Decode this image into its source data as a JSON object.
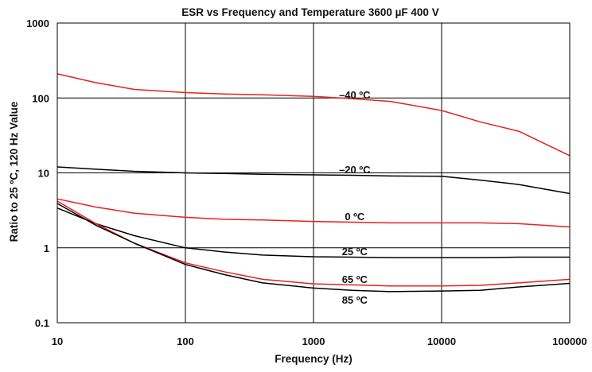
{
  "chart_data": {
    "type": "line",
    "title": "ESR vs Frequency  and Temperature 3600 µF 400 V",
    "xlabel": "Frequency  (Hz)",
    "ylabel": "Ratio to 25 ºC, 120 Hz Value",
    "x_scale": "log",
    "y_scale": "log",
    "xlim": [
      10,
      100000
    ],
    "ylim": [
      0.1,
      1000
    ],
    "x_ticks": [
      "10",
      "100",
      "1000",
      "10000",
      "100000"
    ],
    "y_ticks": [
      "0.1",
      "1",
      "10",
      "100",
      "1000"
    ],
    "grid": true,
    "colors": {
      "red": "#e8211d",
      "black": "#000000"
    },
    "series": [
      {
        "name": "–40 ºC",
        "color": "#e8211d",
        "x": [
          10,
          20,
          40,
          100,
          200,
          400,
          1000,
          2000,
          4000,
          10000,
          20000,
          40000,
          100000
        ],
        "y": [
          210,
          160,
          130,
          118,
          113,
          110,
          105,
          98,
          90,
          68,
          48,
          36,
          17
        ]
      },
      {
        "name": "–20 ºC",
        "color": "#000000",
        "x": [
          10,
          20,
          40,
          100,
          200,
          400,
          1000,
          2000,
          4000,
          10000,
          20000,
          40000,
          100000
        ],
        "y": [
          12,
          11.2,
          10.5,
          10,
          9.8,
          9.6,
          9.4,
          9.3,
          9.1,
          9.0,
          8.0,
          7.0,
          5.3
        ]
      },
      {
        "name": "0 ºC",
        "color": "#e8211d",
        "x": [
          10,
          20,
          40,
          100,
          200,
          400,
          1000,
          2000,
          4000,
          10000,
          20000,
          40000,
          100000
        ],
        "y": [
          4.5,
          3.5,
          2.9,
          2.55,
          2.4,
          2.35,
          2.25,
          2.2,
          2.15,
          2.15,
          2.15,
          2.1,
          1.9
        ]
      },
      {
        "name": "25 ºC",
        "color": "#000000",
        "x": [
          10,
          20,
          40,
          100,
          200,
          400,
          1000,
          2000,
          4000,
          10000,
          20000,
          40000,
          100000
        ],
        "y": [
          3.4,
          2.1,
          1.45,
          1.0,
          0.88,
          0.8,
          0.76,
          0.75,
          0.74,
          0.74,
          0.74,
          0.75,
          0.75
        ]
      },
      {
        "name": "65 ºC",
        "color": "#e8211d",
        "x": [
          10,
          20,
          40,
          100,
          200,
          400,
          1000,
          2000,
          4000,
          10000,
          20000,
          40000,
          100000
        ],
        "y": [
          4.2,
          2.1,
          1.15,
          0.63,
          0.48,
          0.38,
          0.33,
          0.32,
          0.31,
          0.31,
          0.315,
          0.34,
          0.38
        ]
      },
      {
        "name": "85 ºC",
        "color": "#000000",
        "x": [
          10,
          20,
          40,
          100,
          200,
          400,
          1000,
          2000,
          4000,
          10000,
          20000,
          40000,
          100000
        ],
        "y": [
          3.9,
          2.0,
          1.15,
          0.6,
          0.44,
          0.34,
          0.29,
          0.27,
          0.26,
          0.265,
          0.27,
          0.3,
          0.335
        ]
      }
    ]
  }
}
